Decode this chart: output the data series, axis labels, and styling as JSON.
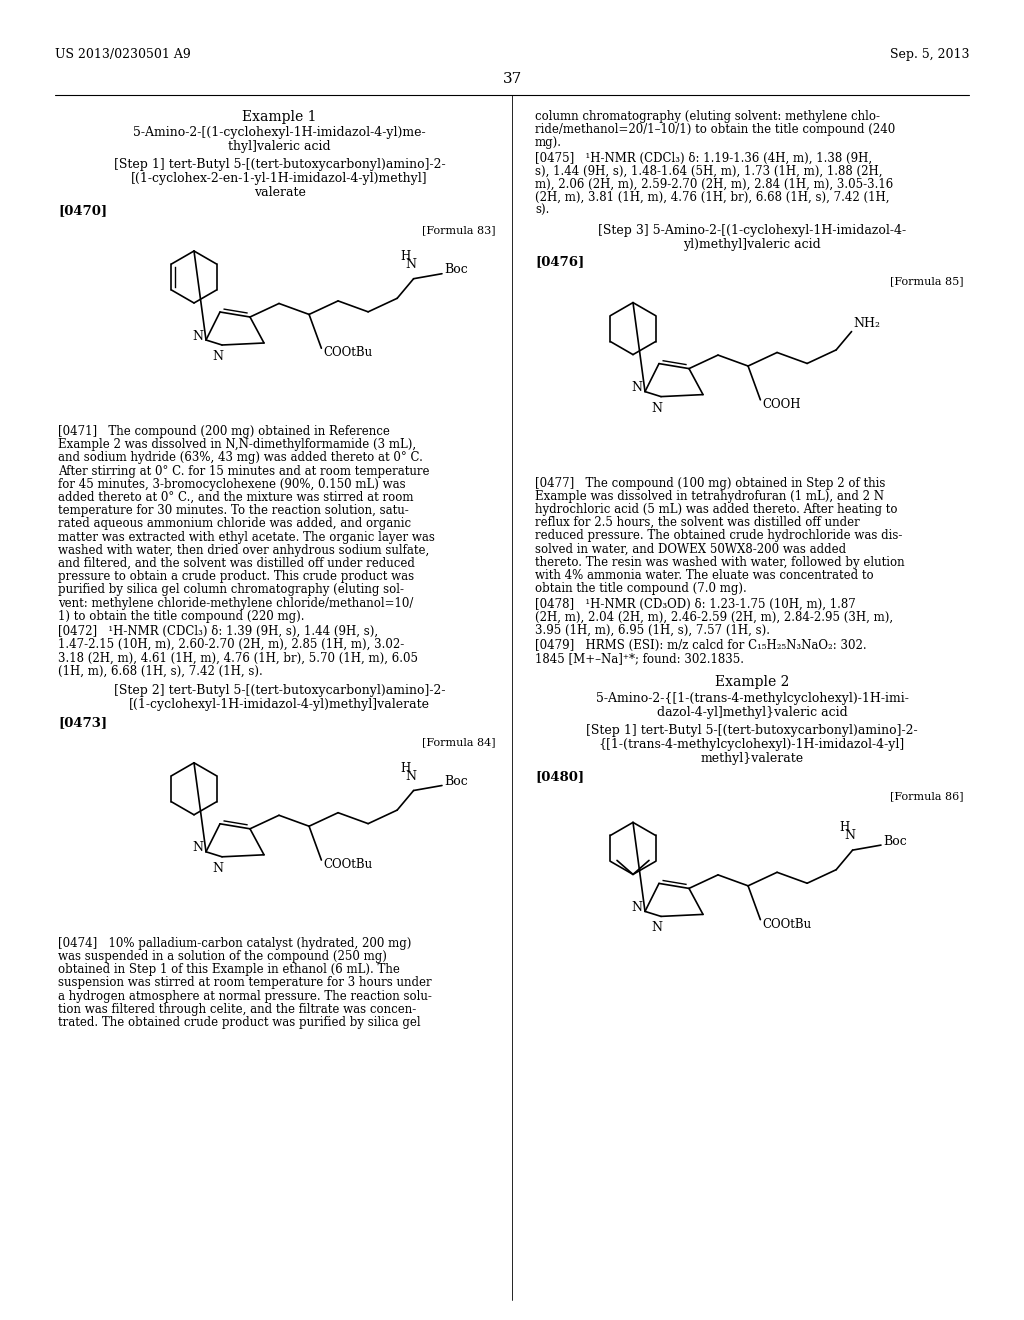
{
  "background_color": "#ffffff",
  "page_number": "37",
  "header_left": "US 2013/0230501 A9",
  "header_right": "Sep. 5, 2013"
}
